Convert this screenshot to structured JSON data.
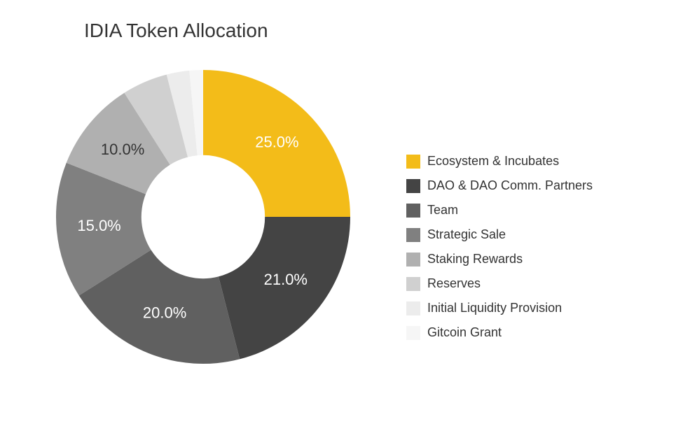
{
  "title": "IDIA Token Allocation",
  "chart": {
    "type": "donut",
    "background_color": "#ffffff",
    "inner_radius_ratio": 0.42,
    "outer_radius": 210,
    "start_angle_deg": 0,
    "title_fontsize": 28,
    "title_color": "#333333",
    "label_fontsize": 22,
    "label_color_light": "#ffffff",
    "label_color_dark": "#333333",
    "legend_fontsize": 18,
    "legend_text_color": "#333333",
    "slices": [
      {
        "name": "Ecosystem & Incubates",
        "value": 25.0,
        "color": "#f3bc19",
        "show_label": true,
        "label": "25.0%",
        "label_dark": false
      },
      {
        "name": "DAO & DAO Comm. Partners",
        "value": 21.0,
        "color": "#444444",
        "show_label": true,
        "label": "21.0%",
        "label_dark": false
      },
      {
        "name": "Team",
        "value": 20.0,
        "color": "#606060",
        "show_label": true,
        "label": "20.0%",
        "label_dark": false
      },
      {
        "name": "Strategic Sale",
        "value": 15.0,
        "color": "#808080",
        "show_label": true,
        "label": "15.0%",
        "label_dark": false
      },
      {
        "name": "Staking Rewards",
        "value": 10.0,
        "color": "#b0b0b0",
        "show_label": true,
        "label": "10.0%",
        "label_dark": true
      },
      {
        "name": "Reserves",
        "value": 5.0,
        "color": "#d0d0d0",
        "show_label": false,
        "label": "",
        "label_dark": true
      },
      {
        "name": "Initial Liquidity Provision",
        "value": 2.5,
        "color": "#ececec",
        "show_label": false,
        "label": "",
        "label_dark": true
      },
      {
        "name": "Gitcoin Grant",
        "value": 1.5,
        "color": "#f6f6f6",
        "show_label": false,
        "label": "",
        "label_dark": true
      }
    ]
  }
}
